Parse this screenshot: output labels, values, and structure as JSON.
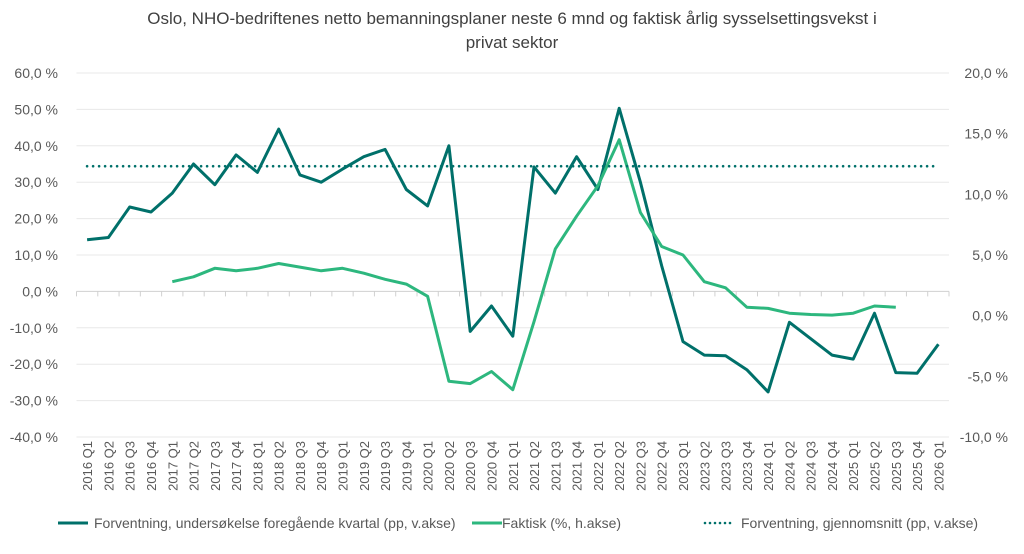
{
  "chart_data": {
    "type": "line",
    "title": "Oslo, NHO-bedriftenes netto bemanningsplaner neste 6 mnd og faktisk årlig sysselsettingsvekst i privat sektor",
    "title_lines": [
      "Oslo, NHO-bedriftenes netto bemanningsplaner neste 6 mnd og faktisk årlig sysselsettingsvekst i",
      "privat sektor"
    ],
    "categories": [
      "2016 Q1",
      "2016 Q2",
      "2016 Q3",
      "2016 Q4",
      "2017 Q1",
      "2017 Q2",
      "2017 Q3",
      "2017 Q4",
      "2018 Q1",
      "2018 Q2",
      "2018 Q3",
      "2018 Q4",
      "2019 Q1",
      "2019 Q2",
      "2019 Q3",
      "2019 Q4",
      "2020 Q1",
      "2020 Q2",
      "2020 Q3",
      "2020 Q4",
      "2021 Q1",
      "2021 Q2",
      "2021 Q3",
      "2021 Q4",
      "2022 Q1",
      "2022 Q2",
      "2022 Q3",
      "2022 Q4",
      "2023 Q1",
      "2023 Q2",
      "2023 Q3",
      "2023 Q4",
      "2024 Q1",
      "2024 Q2",
      "2024 Q3",
      "2024 Q4",
      "2025 Q1",
      "2025 Q2",
      "2025 Q3",
      "2025 Q4",
      "2026 Q1"
    ],
    "y_left": {
      "range": [
        -40,
        60
      ],
      "ticks": [
        60,
        50,
        40,
        30,
        20,
        10,
        0,
        -10,
        -20,
        -30,
        -40
      ],
      "tick_labels": [
        "60,0 %",
        "50,0 %",
        "40,0 %",
        "30,0 %",
        "20,0 %",
        "10,0 %",
        "0,0 %",
        "-10,0 %",
        "-20,0 %",
        "-30,0 %",
        "-40,0 %"
      ]
    },
    "y_right": {
      "range": [
        -10,
        20
      ],
      "ticks": [
        20,
        15,
        10,
        5,
        0,
        -5,
        -10
      ],
      "tick_labels": [
        "20,0 %",
        "15,0 %",
        "10,0 %",
        "5,0 %",
        "0,0 %",
        "-5,0 %",
        "-10,0 %"
      ]
    },
    "grid": true,
    "legend_position": "bottom",
    "series": [
      {
        "name": "Forventning, undersøkelse foregående kvartal (pp, v.akse)",
        "axis": "left",
        "color": "#00706A",
        "style": "solid",
        "values": [
          14.2,
          14.8,
          23.2,
          21.8,
          27,
          35,
          29.3,
          37.5,
          32.7,
          44.6,
          32,
          30,
          33.6,
          37,
          39,
          28,
          23.5,
          40,
          -11,
          -4,
          -12.3,
          34.2,
          27,
          37,
          28,
          50.3,
          30,
          7,
          -13.8,
          -17.5,
          -17.7,
          -21.5,
          -27.6,
          -8.5,
          -13,
          -17.5,
          -18.6,
          -6,
          -22.3,
          -22.5,
          -14.5
        ]
      },
      {
        "name": "Faktisk (%, h.akse)",
        "axis": "right",
        "color": "#2DB77E",
        "style": "solid",
        "values": [
          null,
          null,
          null,
          null,
          2.8,
          3.2,
          3.9,
          3.7,
          3.9,
          4.3,
          4.0,
          3.7,
          3.9,
          3.5,
          3.0,
          2.6,
          1.6,
          -5.4,
          -5.6,
          -4.6,
          -6.1,
          -0.5,
          5.5,
          8.2,
          10.7,
          14.5,
          8.5,
          5.7,
          5.0,
          2.8,
          2.3,
          0.7,
          0.6,
          0.2,
          0.1,
          0.05,
          0.2,
          0.8,
          0.7,
          null,
          null
        ]
      },
      {
        "name": "Forventning, gjennomsnitt (pp, v.akse)",
        "axis": "left",
        "color": "#00706A",
        "style": "dotted",
        "values": [
          34.4,
          34.4,
          34.4,
          34.4,
          34.4,
          34.4,
          34.4,
          34.4,
          34.4,
          34.4,
          34.4,
          34.4,
          34.4,
          34.4,
          34.4,
          34.4,
          34.4,
          34.4,
          34.4,
          34.4,
          34.4,
          34.4,
          34.4,
          34.4,
          34.4,
          34.4,
          34.4,
          34.4,
          34.4,
          34.4,
          34.4,
          34.4,
          34.4,
          34.4,
          34.4,
          34.4,
          34.4,
          34.4,
          34.4,
          34.4,
          34.4
        ]
      }
    ]
  }
}
